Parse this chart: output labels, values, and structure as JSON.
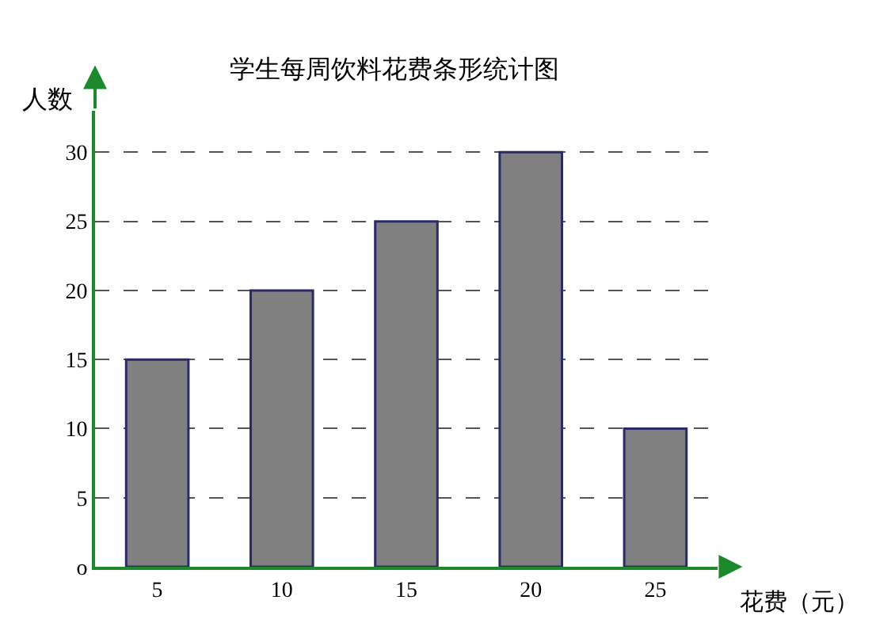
{
  "chart_data": {
    "type": "bar",
    "title": "学生每周饮料花费条形统计图",
    "xlabel": "花费（元）",
    "ylabel": "人数",
    "categories": [
      "5",
      "10",
      "15",
      "20",
      "25"
    ],
    "values": [
      15,
      20,
      25,
      30,
      10
    ],
    "color": "#808080",
    "ylim": [
      0,
      33
    ],
    "yticks": [
      {
        "value": 0,
        "label": "o"
      },
      5,
      10,
      15,
      20,
      25,
      30
    ],
    "grid": "y",
    "line_style": "dashed"
  }
}
